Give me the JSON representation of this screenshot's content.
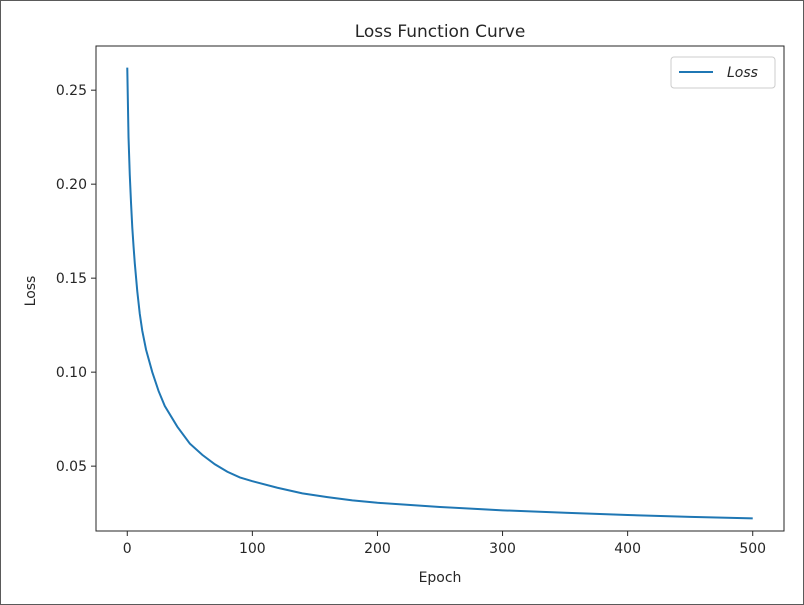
{
  "chart_data": {
    "type": "line",
    "title": "Loss Function Curve",
    "xlabel": "Epoch",
    "ylabel": "Loss",
    "xlim": [
      -25,
      525
    ],
    "ylim": [
      0.0155,
      0.2735
    ],
    "xticks": [
      0,
      100,
      200,
      300,
      400,
      500
    ],
    "xtick_labels": [
      "0",
      "100",
      "200",
      "300",
      "400",
      "500"
    ],
    "yticks": [
      0.05,
      0.1,
      0.15,
      0.2,
      0.25
    ],
    "ytick_labels": [
      "0.05",
      "0.10",
      "0.15",
      "0.20",
      "0.25"
    ],
    "grid": false,
    "legend": {
      "placement": "top-right",
      "entries": [
        "Loss"
      ]
    },
    "series": [
      {
        "name": "Loss",
        "color": "#1f77b4",
        "x": [
          0,
          1,
          2,
          3,
          4,
          5,
          6,
          8,
          10,
          12,
          15,
          20,
          25,
          30,
          40,
          50,
          60,
          70,
          80,
          90,
          100,
          120,
          140,
          160,
          180,
          200,
          250,
          300,
          350,
          400,
          450,
          500
        ],
        "y": [
          0.262,
          0.225,
          0.205,
          0.19,
          0.177,
          0.167,
          0.158,
          0.143,
          0.131,
          0.122,
          0.112,
          0.1,
          0.09,
          0.082,
          0.071,
          0.062,
          0.056,
          0.051,
          0.047,
          0.044,
          0.042,
          0.0385,
          0.0355,
          0.0335,
          0.0318,
          0.0305,
          0.0283,
          0.0265,
          0.0252,
          0.024,
          0.023,
          0.0222
        ]
      }
    ]
  }
}
